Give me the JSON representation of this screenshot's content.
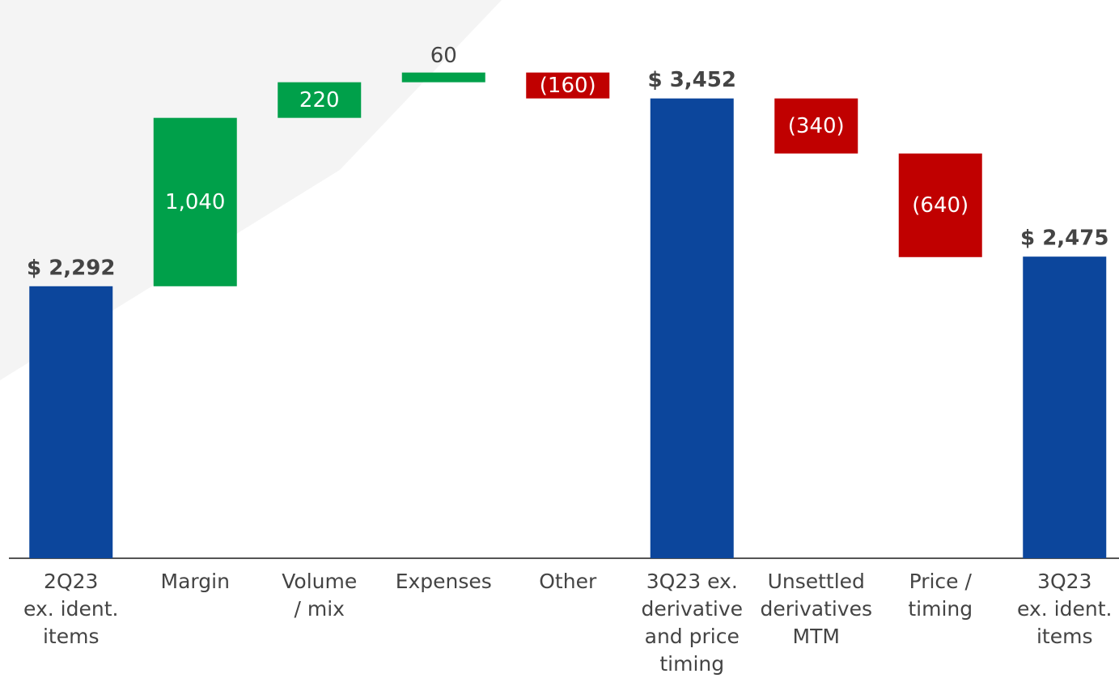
{
  "chart_data": {
    "type": "waterfall",
    "categories": [
      [
        "2Q23",
        "ex. ident.",
        "items"
      ],
      [
        "Margin"
      ],
      [
        "Volume",
        "/ mix"
      ],
      [
        "Expenses"
      ],
      [
        "Other"
      ],
      [
        "3Q23 ex.",
        "derivative",
        "and price",
        "timing"
      ],
      [
        "Unsettled",
        "derivatives",
        "MTM"
      ],
      [
        "Price /",
        "timing"
      ],
      [
        "3Q23",
        "ex. ident.",
        "items"
      ]
    ],
    "measure": [
      "absolute",
      "relative",
      "relative",
      "relative",
      "relative",
      "absolute",
      "relative",
      "relative",
      "absolute"
    ],
    "values": [
      2292,
      1040,
      220,
      60,
      -160,
      3452,
      -340,
      -640,
      2475
    ],
    "value_labels": [
      "$ 2,292",
      "1,040",
      "220",
      "60",
      "(160)",
      "$ 3,452",
      "(340)",
      "(640)",
      "$ 2,475"
    ],
    "colors": {
      "total": "#0c469c",
      "increase": "#00a04a",
      "decrease": "#c00000"
    },
    "ylim": [
      612,
      4000
    ]
  }
}
